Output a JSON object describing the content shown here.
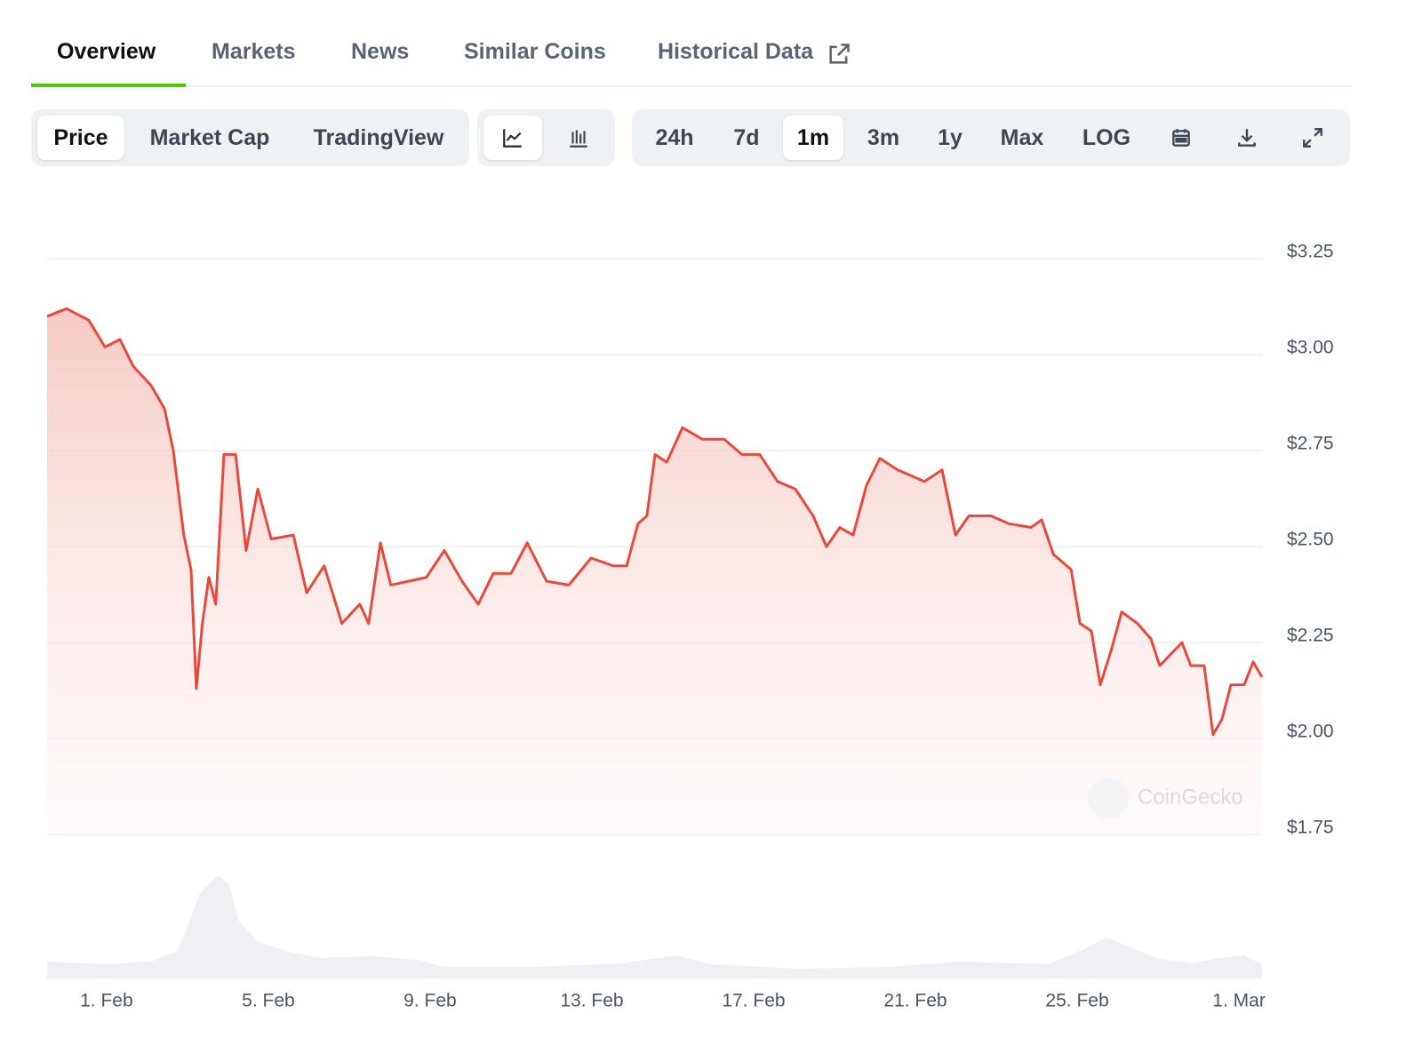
{
  "tabs": [
    "Overview",
    "Markets",
    "News",
    "Similar Coins",
    "Historical Data"
  ],
  "toolbar": {
    "chart_kind": [
      "Price",
      "Market Cap",
      "TradingView"
    ],
    "ranges": [
      "24h",
      "7d",
      "1m",
      "3m",
      "1y",
      "Max",
      "LOG"
    ]
  },
  "chart_data": {
    "type": "line",
    "x": [
      -0.47,
      0.01,
      0.56,
      0.96,
      1.33,
      1.66,
      2.1,
      2.43,
      2.65,
      2.91,
      3.09,
      3.22,
      3.37,
      3.53,
      3.7,
      3.9,
      4.19,
      4.45,
      4.74,
      5.07,
      5.62,
      5.95,
      6.38,
      6.82,
      7.26,
      7.48,
      7.77,
      8.03,
      8.47,
      8.91,
      9.35,
      9.79,
      10.19,
      10.56,
      11.0,
      11.4,
      11.88,
      12.43,
      12.98,
      13.53,
      13.86,
      14.14,
      14.36,
      14.56,
      14.85,
      15.24,
      15.73,
      16.27,
      16.71,
      17.15,
      17.59,
      18.03,
      18.47,
      18.8,
      19.13,
      19.46,
      19.79,
      20.12,
      20.56,
      21.22,
      21.66,
      21.99,
      22.32,
      22.87,
      23.31,
      23.86,
      24.12,
      24.41,
      24.85,
      25.07,
      25.35,
      25.57,
      25.84,
      26.1,
      26.49,
      26.82,
      27.04,
      27.59,
      27.81,
      28.14,
      28.36,
      28.58,
      28.8,
      29.13,
      29.35,
      29.57
    ],
    "series": [
      {
        "color": "#e8493b",
        "values": [
          3.1,
          3.12,
          3.09,
          3.02,
          3.04,
          2.97,
          2.92,
          2.86,
          2.75,
          2.53,
          2.44,
          2.13,
          2.3,
          2.42,
          2.35,
          2.74,
          2.74,
          2.49,
          2.65,
          2.52,
          2.53,
          2.38,
          2.45,
          2.3,
          2.35,
          2.3,
          2.51,
          2.4,
          2.41,
          2.42,
          2.49,
          2.41,
          2.35,
          2.43,
          2.43,
          2.51,
          2.41,
          2.4,
          2.47,
          2.45,
          2.45,
          2.56,
          2.58,
          2.74,
          2.72,
          2.81,
          2.78,
          2.78,
          2.74,
          2.74,
          2.67,
          2.65,
          2.58,
          2.5,
          2.55,
          2.53,
          2.66,
          2.73,
          2.7,
          2.67,
          2.7,
          2.53,
          2.58,
          2.58,
          2.56,
          2.55,
          2.57,
          2.48,
          2.44,
          2.3,
          2.28,
          2.14,
          2.23,
          2.33,
          2.3,
          2.26,
          2.19,
          2.25,
          2.19,
          2.19,
          2.01,
          2.05,
          2.14,
          2.14,
          2.2,
          2.16
        ]
      }
    ],
    "xlim": [
      -0.47,
      29.57
    ],
    "xticks": [
      {
        "value": 1,
        "label": "1. Feb"
      },
      {
        "value": 5,
        "label": "5. Feb"
      },
      {
        "value": 9,
        "label": "9. Feb"
      },
      {
        "value": 13,
        "label": "13. Feb"
      },
      {
        "value": 17,
        "label": "17. Feb"
      },
      {
        "value": 21,
        "label": "21. Feb"
      },
      {
        "value": 25,
        "label": "25. Feb"
      },
      {
        "value": 29,
        "label": "1. Mar"
      }
    ],
    "ylim": [
      1.75,
      3.35
    ],
    "yticks": [
      {
        "value": 1.75,
        "label": "$1.75"
      },
      {
        "value": 2.0,
        "label": "$2.00"
      },
      {
        "value": 2.25,
        "label": "$2.25"
      },
      {
        "value": 2.5,
        "label": "$2.50"
      },
      {
        "value": 2.75,
        "label": "$2.75"
      },
      {
        "value": 3.0,
        "label": "$3.00"
      },
      {
        "value": 3.25,
        "label": "$3.25"
      }
    ],
    "grid": true,
    "area": true,
    "watermark": "CoinGecko"
  }
}
